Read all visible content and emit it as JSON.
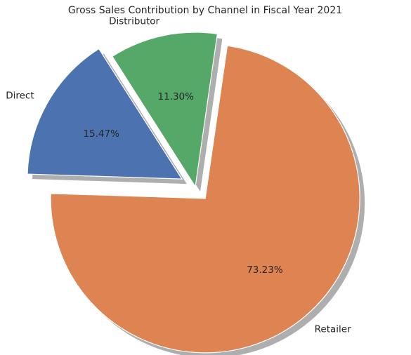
{
  "chart_data": {
    "type": "pie",
    "title": "Gross Sales Contribution by Channel in Fiscal Year 2021",
    "slices": [
      {
        "label": "Retailer",
        "value": 73.23,
        "pct_text": "73.23%",
        "color": "#dd8452",
        "exploded": true
      },
      {
        "label": "Direct",
        "value": 15.47,
        "pct_text": "15.47%",
        "color": "#4c72b0",
        "exploded": true
      },
      {
        "label": "Distributor",
        "value": 11.3,
        "pct_text": "11.30%",
        "color": "#55a868",
        "exploded": false
      }
    ],
    "shadow": true
  }
}
